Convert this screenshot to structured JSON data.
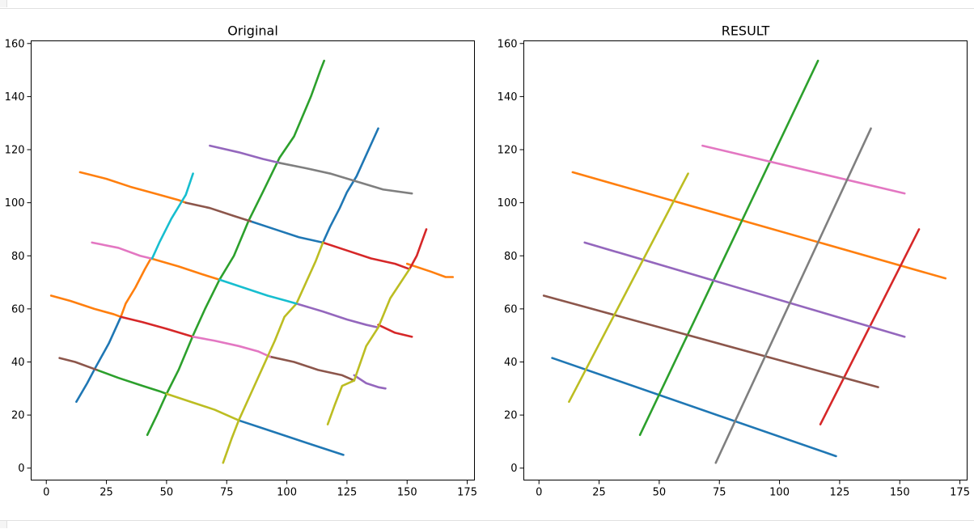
{
  "chart_data": [
    {
      "type": "line",
      "title": "Original",
      "xlabel": "",
      "ylabel": "",
      "xlim": [
        -6.3,
        178
      ],
      "ylim": [
        -4.5,
        161
      ],
      "xticks": [
        0,
        25,
        50,
        75,
        100,
        125,
        150,
        175
      ],
      "yticks": [
        0,
        20,
        40,
        60,
        80,
        100,
        120,
        140,
        160
      ],
      "series": [
        {
          "color": "#1f77b4",
          "points": [
            [
              12.5,
              25
            ],
            [
              17,
              32
            ],
            [
              20.5,
              38
            ],
            [
              26,
              47
            ],
            [
              29.5,
              54
            ],
            [
              31,
              57
            ]
          ]
        },
        {
          "color": "#ff7f0e",
          "points": [
            [
              31,
              57
            ],
            [
              33,
              62
            ],
            [
              37,
              68
            ],
            [
              41,
              75
            ],
            [
              43.5,
              79
            ]
          ]
        },
        {
          "color": "#1f77b4",
          "points": [
            [
              85,
              93
            ],
            [
              95,
              90
            ],
            [
              105,
              87
            ],
            [
              115,
              85
            ]
          ]
        },
        {
          "color": "#1f77b4",
          "points": [
            [
              115,
              85
            ],
            [
              118,
              91
            ],
            [
              122,
              98
            ],
            [
              125,
              104
            ],
            [
              129,
              110
            ],
            [
              138,
              128
            ]
          ]
        },
        {
          "color": "#1f77b4",
          "points": [
            [
              80,
              18
            ],
            [
              90,
              15
            ],
            [
              100,
              12
            ],
            [
              110,
              9
            ],
            [
              123.5,
              5
            ]
          ]
        },
        {
          "color": "#ff7f0e",
          "points": [
            [
              14,
              111.5
            ],
            [
              25,
              109
            ],
            [
              35,
              106
            ],
            [
              45,
              103.5
            ],
            [
              55,
              101
            ],
            [
              58,
              100
            ]
          ]
        },
        {
          "color": "#ff7f0e",
          "points": [
            [
              2,
              65
            ],
            [
              10,
              63
            ],
            [
              20,
              60
            ],
            [
              28,
              58
            ],
            [
              31,
              57
            ]
          ]
        },
        {
          "color": "#ff7f0e",
          "points": [
            [
              43.5,
              79
            ],
            [
              55,
              76
            ],
            [
              65,
              73
            ],
            [
              72,
              71
            ]
          ]
        },
        {
          "color": "#ff7f0e",
          "points": [
            [
              150,
              77
            ],
            [
              160,
              74
            ],
            [
              166,
              72
            ],
            [
              169,
              72
            ]
          ]
        },
        {
          "color": "#2ca02c",
          "points": [
            [
              42,
              12.5
            ],
            [
              46,
              20
            ],
            [
              50,
              28
            ]
          ]
        },
        {
          "color": "#2ca02c",
          "points": [
            [
              21,
              37
            ],
            [
              30,
              34
            ],
            [
              40,
              31
            ],
            [
              47,
              29
            ],
            [
              50,
              28
            ]
          ]
        },
        {
          "color": "#2ca02c",
          "points": [
            [
              50,
              28
            ],
            [
              55,
              37
            ],
            [
              61,
              50
            ],
            [
              66,
              60
            ],
            [
              72,
              71
            ],
            [
              78,
              80
            ],
            [
              84,
              93
            ],
            [
              90,
              104
            ],
            [
              97,
              117
            ],
            [
              103,
              125
            ],
            [
              110,
              140
            ],
            [
              114,
              150
            ],
            [
              115.5,
              153.5
            ]
          ]
        },
        {
          "color": "#d62728",
          "points": [
            [
              31,
              57
            ],
            [
              40,
              55
            ],
            [
              50,
              52.5
            ],
            [
              61,
              49.5
            ]
          ]
        },
        {
          "color": "#d62728",
          "points": [
            [
              115,
              85
            ],
            [
              125,
              82
            ],
            [
              135,
              79
            ],
            [
              145,
              77
            ],
            [
              151,
              75
            ]
          ]
        },
        {
          "color": "#d62728",
          "points": [
            [
              151,
              75
            ],
            [
              154,
              80
            ],
            [
              156,
              85
            ],
            [
              158,
              90
            ]
          ]
        },
        {
          "color": "#d62728",
          "points": [
            [
              138,
              54
            ],
            [
              145,
              51
            ],
            [
              152,
              49.5
            ]
          ]
        },
        {
          "color": "#9467bd",
          "points": [
            [
              68,
              121.5
            ],
            [
              80,
              119
            ],
            [
              90,
              116.5
            ],
            [
              97,
              115
            ]
          ]
        },
        {
          "color": "#9467bd",
          "points": [
            [
              104,
              62
            ],
            [
              115,
              59
            ],
            [
              125,
              56
            ],
            [
              133,
              54
            ],
            [
              138,
              53
            ]
          ]
        },
        {
          "color": "#9467bd",
          "points": [
            [
              128,
              35
            ],
            [
              133,
              32
            ],
            [
              138,
              30.5
            ],
            [
              141,
              30
            ]
          ]
        },
        {
          "color": "#8c564b",
          "points": [
            [
              58,
              100
            ],
            [
              68,
              98
            ],
            [
              78,
              95
            ],
            [
              85,
              93
            ]
          ]
        },
        {
          "color": "#8c564b",
          "points": [
            [
              5.5,
              41.5
            ],
            [
              12,
              40
            ],
            [
              21,
              37
            ]
          ]
        },
        {
          "color": "#8c564b",
          "points": [
            [
              93,
              42
            ],
            [
              103,
              40
            ],
            [
              113,
              37
            ],
            [
              123,
              35
            ],
            [
              128,
              33
            ]
          ]
        },
        {
          "color": "#e377c2",
          "points": [
            [
              19,
              85
            ],
            [
              30,
              83
            ],
            [
              39,
              80
            ],
            [
              43.5,
              79
            ]
          ]
        },
        {
          "color": "#e377c2",
          "points": [
            [
              61,
              49.5
            ],
            [
              70,
              48
            ],
            [
              80,
              46
            ],
            [
              88,
              44
            ],
            [
              93,
              42
            ]
          ]
        },
        {
          "color": "#7f7f7f",
          "points": [
            [
              97,
              115
            ],
            [
              108,
              113
            ],
            [
              118,
              111
            ],
            [
              129,
              108
            ],
            [
              140,
              105
            ],
            [
              152,
              103.5
            ]
          ]
        },
        {
          "color": "#bcbd22",
          "points": [
            [
              50,
              28
            ],
            [
              60,
              25
            ],
            [
              70,
              22
            ],
            [
              80,
              18
            ]
          ]
        },
        {
          "color": "#bcbd22",
          "points": [
            [
              73.5,
              2
            ],
            [
              77,
              11
            ],
            [
              80,
              18
            ],
            [
              85,
              28
            ],
            [
              90,
              38
            ],
            [
              95,
              48
            ],
            [
              99,
              57
            ],
            [
              104,
              62
            ],
            [
              108,
              70
            ],
            [
              112,
              78
            ],
            [
              115,
              85
            ]
          ]
        },
        {
          "color": "#bcbd22",
          "points": [
            [
              117,
              16.5
            ],
            [
              120,
              24
            ],
            [
              123,
              31
            ],
            [
              128,
              33
            ],
            [
              133,
              46
            ],
            [
              138,
              53
            ],
            [
              143,
              64
            ],
            [
              151,
              75
            ]
          ]
        },
        {
          "color": "#17becf",
          "points": [
            [
              44,
              79
            ],
            [
              47,
              85
            ],
            [
              52,
              94
            ],
            [
              56,
              100
            ],
            [
              58,
              103
            ],
            [
              61,
              111
            ]
          ]
        },
        {
          "color": "#17becf",
          "points": [
            [
              72,
              71
            ],
            [
              82,
              68
            ],
            [
              92,
              65
            ],
            [
              100,
              63
            ],
            [
              104,
              62
            ]
          ]
        }
      ]
    },
    {
      "type": "line",
      "title": "RESULT",
      "xlabel": "",
      "ylabel": "",
      "xlim": [
        -6.3,
        178
      ],
      "ylim": [
        -4.5,
        161
      ],
      "xticks": [
        0,
        25,
        50,
        75,
        100,
        125,
        150,
        175
      ],
      "yticks": [
        0,
        20,
        40,
        60,
        80,
        100,
        120,
        140,
        160
      ],
      "series": [
        {
          "color": "#1f77b4",
          "points": [
            [
              5.5,
              41.5
            ],
            [
              123.5,
              4.5
            ]
          ]
        },
        {
          "color": "#ff7f0e",
          "points": [
            [
              14,
              111.5
            ],
            [
              169,
              71.5
            ]
          ]
        },
        {
          "color": "#2ca02c",
          "points": [
            [
              42,
              12.5
            ],
            [
              116,
              153.5
            ]
          ]
        },
        {
          "color": "#d62728",
          "points": [
            [
              117,
              16.5
            ],
            [
              158,
              90
            ]
          ]
        },
        {
          "color": "#9467bd",
          "points": [
            [
              19,
              85
            ],
            [
              152,
              49.5
            ]
          ]
        },
        {
          "color": "#8c564b",
          "points": [
            [
              2,
              65
            ],
            [
              141,
              30.5
            ]
          ]
        },
        {
          "color": "#e377c2",
          "points": [
            [
              68,
              121.5
            ],
            [
              152,
              103.5
            ]
          ]
        },
        {
          "color": "#7f7f7f",
          "points": [
            [
              73.5,
              2
            ],
            [
              138,
              128
            ]
          ]
        },
        {
          "color": "#bcbd22",
          "points": [
            [
              12.5,
              25
            ],
            [
              62,
              111
            ]
          ]
        }
      ]
    }
  ]
}
